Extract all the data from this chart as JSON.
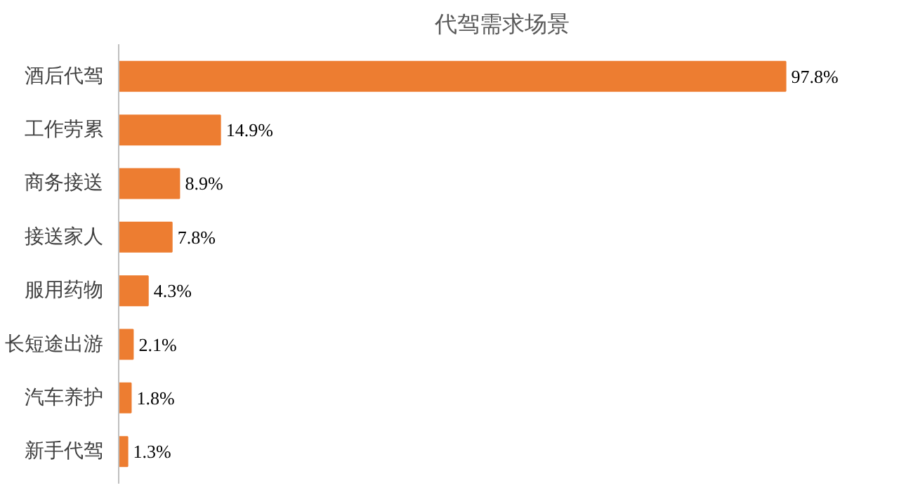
{
  "chart_data": {
    "type": "bar",
    "orientation": "horizontal",
    "title": "代驾需求场景",
    "categories": [
      "酒后代驾",
      "工作劳累",
      "商务接送",
      "接送家人",
      "服用药物",
      "长短途出游",
      "汽车养护",
      "新手代驾"
    ],
    "values": [
      97.8,
      14.9,
      8.9,
      7.8,
      4.3,
      2.1,
      1.8,
      1.3
    ],
    "color": "#ed7d31",
    "value_labels": [
      "97.8%",
      "14.9%",
      "8.9%",
      "7.8%",
      "4.3%",
      "2.1%",
      "1.8%",
      "1.3%"
    ],
    "grid": false
  }
}
